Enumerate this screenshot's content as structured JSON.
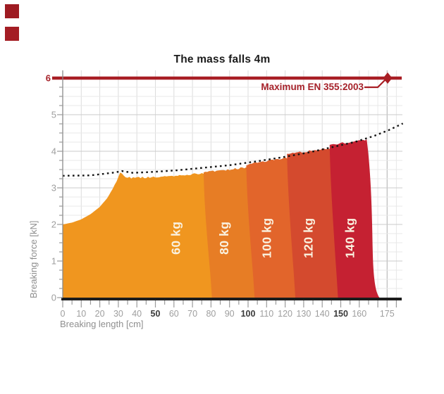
{
  "decor": {
    "squares": [
      {
        "name": "red-square-top",
        "color": "#9E1B22"
      },
      {
        "name": "red-square-bottom",
        "color": "#A41D24"
      }
    ]
  },
  "chart_data": {
    "type": "area",
    "title": "The mass falls 4m",
    "xlabel": "Breaking length [cm]",
    "ylabel": "Breaking force [kN]",
    "xlim": [
      0,
      183.5
    ],
    "ylim": [
      0,
      6.25
    ],
    "grid": true,
    "x_tick_labels": [
      0,
      10,
      20,
      30,
      40,
      50,
      60,
      70,
      80,
      90,
      100,
      110,
      120,
      130,
      140,
      150,
      160,
      175
    ],
    "x_bold_ticks": [
      50,
      100,
      150
    ],
    "x_minor_step": 5,
    "y_tick_labels": [
      0,
      1,
      2,
      3,
      4,
      5,
      6
    ],
    "y_minor_step": 0.25,
    "max_line": {
      "label": "Maximum EN 355:2003",
      "value": 6,
      "color": "#A81E24",
      "label_color": "#A6222A",
      "marker_cm": 175.3
    },
    "envelope": {
      "color": "#141414",
      "style": "dotted",
      "points": [
        [
          0,
          3.33
        ],
        [
          15,
          3.34
        ],
        [
          28,
          3.42
        ],
        [
          32,
          3.46
        ],
        [
          38,
          3.41
        ],
        [
          50,
          3.44
        ],
        [
          62,
          3.48
        ],
        [
          76,
          3.55
        ],
        [
          90,
          3.62
        ],
        [
          104,
          3.72
        ],
        [
          118,
          3.83
        ],
        [
          132,
          3.96
        ],
        [
          146,
          4.12
        ],
        [
          158,
          4.26
        ],
        [
          168,
          4.42
        ],
        [
          176,
          4.58
        ],
        [
          183.5,
          4.76
        ]
      ]
    },
    "band_label_color": "#FAF2E0",
    "bands": [
      {
        "label": "60 kg",
        "color": "#F0961F",
        "x_start": 0,
        "x_end": 76,
        "top_profile": [
          [
            0,
            2.0
          ],
          [
            5,
            2.05
          ],
          [
            10,
            2.14
          ],
          [
            15,
            2.28
          ],
          [
            20,
            2.48
          ],
          [
            24,
            2.72
          ],
          [
            27,
            2.98
          ],
          [
            29.5,
            3.25
          ],
          [
            31,
            3.44
          ],
          [
            32.5,
            3.38
          ],
          [
            35,
            3.3
          ],
          [
            45,
            3.31
          ],
          [
            55,
            3.34
          ],
          [
            65,
            3.38
          ],
          [
            76,
            3.43
          ]
        ],
        "label_cm": 61,
        "label_kN": 1.63
      },
      {
        "label": "80 kg",
        "color": "#E77D25",
        "x_start": 76,
        "x_end": 99,
        "top_profile": [
          [
            76,
            3.46
          ],
          [
            85,
            3.5
          ],
          [
            92,
            3.54
          ],
          [
            99,
            3.58
          ]
        ],
        "label_cm": 87,
        "label_kN": 1.63
      },
      {
        "label": "100 kg",
        "color": "#E2652B",
        "x_start": 99,
        "x_end": 121,
        "top_profile": [
          [
            99,
            3.66
          ],
          [
            107,
            3.73
          ],
          [
            114,
            3.79
          ],
          [
            121,
            3.85
          ]
        ],
        "label_cm": 110,
        "label_kN": 1.63
      },
      {
        "label": "120 kg",
        "color": "#D44A2E",
        "x_start": 121,
        "x_end": 144,
        "top_profile": [
          [
            121,
            3.94
          ],
          [
            129,
            4.0
          ],
          [
            137,
            4.06
          ],
          [
            144,
            4.11
          ]
        ],
        "label_cm": 132.5,
        "label_kN": 1.63
      },
      {
        "label": "140 kg",
        "color": "#C52132",
        "x_start": 144,
        "x_end": 164.5,
        "top_profile": [
          [
            144,
            4.19
          ],
          [
            150,
            4.24
          ],
          [
            157,
            4.29
          ],
          [
            164.5,
            4.33
          ]
        ],
        "label_cm": 155,
        "label_kN": 1.63,
        "right_tail": [
          [
            166.4,
            3.4
          ],
          [
            166.9,
            2.2
          ],
          [
            167.2,
            1.35
          ],
          [
            167.5,
            0.6
          ],
          [
            168.5,
            0.15
          ],
          [
            170.9,
            0
          ]
        ]
      }
    ],
    "axis_colors": {
      "tick": "#9B9B9B",
      "label": "#9E9E9E",
      "bold_label": "#3A3A3A",
      "y6": "#A6222A",
      "grid_minor": "#E8E8E8",
      "grid_major": "#CBCBCB",
      "grid_v": "#DCDCDC",
      "grid_dark": "#ADADAD",
      "x_axis": "#1C1C1C",
      "y_axis": "#8A8A8A"
    }
  }
}
